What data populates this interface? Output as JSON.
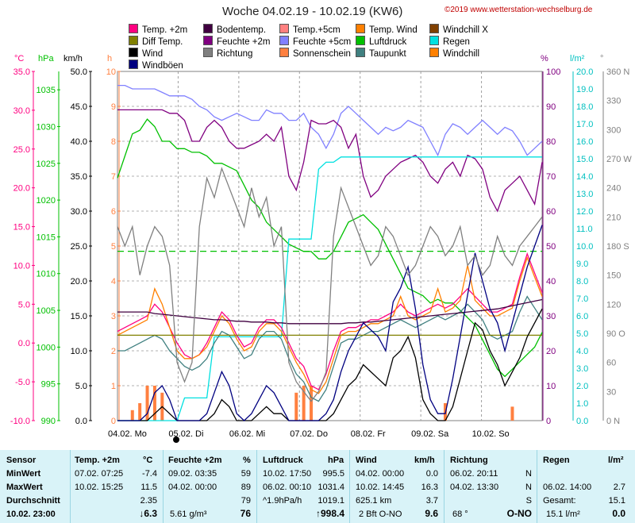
{
  "title": "Woche 04.02.19 - 10.02.19 (KW6)",
  "copyright": "©2019 www.wetterstation-wechselburg.de",
  "legend": [
    {
      "label": "Temp. +2m",
      "color": "#ff0080"
    },
    {
      "label": "Bodentemp.",
      "color": "#400040"
    },
    {
      "label": "Temp.+5cm",
      "color": "#ff8080"
    },
    {
      "label": "Temp. Wind",
      "color": "#ff8000"
    },
    {
      "label": "Windchill X",
      "color": "#804000"
    },
    {
      "label": "Diff Temp.",
      "color": "#808000"
    },
    {
      "label": "Feuchte +2m",
      "color": "#800080"
    },
    {
      "label": "Feuchte +5cm",
      "color": "#8080ff"
    },
    {
      "label": "Luftdruck",
      "color": "#00c000"
    },
    {
      "label": "Regen",
      "color": "#00e0e0"
    },
    {
      "label": "Wind",
      "color": "#000000"
    },
    {
      "label": "Richtung",
      "color": "#808080"
    },
    {
      "label": "Sonnenschein",
      "color": "#ff8040"
    },
    {
      "label": "Taupunkt",
      "color": "#408080"
    },
    {
      "label": "Windchill",
      "color": "#ff8000"
    },
    {
      "label": "Windböen",
      "color": "#000080"
    }
  ],
  "units": {
    "temp": "°C",
    "press": "hPa",
    "wind": "km/h",
    "sun": "h",
    "hum": "%",
    "rain": "l/m²",
    "dir": "°"
  },
  "chart_data": {
    "type": "line",
    "x_labels": [
      "04.02. Mo",
      "05.02. Di",
      "06.02. Mi",
      "07.02. Do",
      "08.02. Fr",
      "09.02. Sa",
      "10.02. So"
    ],
    "axes": {
      "temp": [
        "35.0",
        "30.0",
        "25.0",
        "20.0",
        "15.0",
        "10.0",
        "5.0",
        "0.0",
        "-5.0",
        "-10.0"
      ],
      "press": [
        "1035",
        "1030",
        "1025",
        "1020",
        "1015",
        "1010",
        "1005",
        "1000",
        "995",
        "990"
      ],
      "wind": [
        "50.0",
        "45.0",
        "40.0",
        "35.0",
        "30.0",
        "25.0",
        "20.0",
        "15.0",
        "10.0",
        "5.0",
        "0.0"
      ],
      "sun": [
        "10",
        "9",
        "8",
        "7",
        "6",
        "5",
        "4",
        "3",
        "2",
        "1",
        "0"
      ],
      "hum": [
        "100",
        "90",
        "80",
        "70",
        "60",
        "50",
        "40",
        "30",
        "20",
        "10",
        "0"
      ],
      "rain": [
        "20.0",
        "19.0",
        "18.0",
        "17.0",
        "16.0",
        "15.0",
        "14.0",
        "13.0",
        "12.0",
        "11.0",
        "10.0",
        "9.0",
        "8.0",
        "7.0",
        "6.0",
        "5.0",
        "4.0",
        "3.0",
        "2.0",
        "1.0",
        "0.0"
      ],
      "dir": [
        "360 N",
        "330",
        "300",
        "270 W",
        "240",
        "210",
        "180 S",
        "150",
        "120",
        "90 O",
        "60",
        "30",
        "0 N"
      ]
    },
    "ranges": {
      "temp": [
        -10,
        35
      ],
      "press": [
        990,
        1037.5
      ],
      "wind": [
        0,
        50
      ],
      "sun": [
        0,
        10
      ],
      "hum": [
        0,
        100
      ],
      "rain": [
        0,
        20
      ],
      "dir": [
        0,
        360
      ]
    },
    "series": [
      {
        "name": "Feuchte +5cm",
        "axis": "hum",
        "color": "#8080ff",
        "values": [
          96,
          96,
          95,
          95,
          95,
          95,
          94,
          93,
          93,
          93,
          92,
          90,
          89,
          87,
          86,
          87,
          88,
          87,
          86,
          86,
          89,
          88,
          88,
          86,
          86,
          88,
          84,
          82,
          78,
          82,
          88,
          90,
          88,
          86,
          84,
          82,
          84,
          83,
          84,
          86,
          85,
          84,
          80,
          76,
          82,
          85,
          84,
          82,
          84,
          86,
          84,
          82,
          84,
          83,
          80,
          76,
          78,
          80
        ]
      },
      {
        "name": "Feuchte +2m",
        "axis": "hum",
        "color": "#800080",
        "values": [
          89,
          89,
          89,
          89,
          89,
          89,
          89,
          88,
          88,
          86,
          80,
          80,
          84,
          86,
          84,
          80,
          78,
          78,
          79,
          80,
          82,
          80,
          84,
          70,
          66,
          74,
          86,
          85,
          85,
          86,
          84,
          78,
          82,
          70,
          64,
          66,
          70,
          72,
          74,
          75,
          76,
          74,
          70,
          68,
          72,
          74,
          70,
          76,
          75,
          72,
          64,
          60,
          66,
          68,
          70,
          66,
          62,
          74
        ]
      },
      {
        "name": "Luftdruck",
        "axis": "press",
        "color": "#00c000",
        "values": [
          1023,
          1026,
          1029,
          1029.5,
          1031,
          1030,
          1028,
          1028,
          1027,
          1027,
          1026.5,
          1026.5,
          1026,
          1025,
          1025,
          1024.5,
          1024,
          1022,
          1020,
          1019,
          1017,
          1016,
          1015,
          1014,
          1013.5,
          1013,
          1013,
          1012,
          1012,
          1013,
          1015,
          1017,
          1017.5,
          1018,
          1017,
          1016,
          1014,
          1012,
          1010,
          1008,
          1007.5,
          1007,
          1006,
          1006.5,
          1006,
          1006,
          1005,
          1004,
          1003,
          1001,
          999,
          997,
          996,
          997,
          998,
          999,
          1000,
          1002
        ]
      },
      {
        "name": "Regen",
        "axis": "rain",
        "color": "#00e0e0",
        "values": [
          0,
          0,
          0,
          0,
          0,
          0,
          0,
          0,
          0,
          1.3,
          1.3,
          1.3,
          1.3,
          4.8,
          4.8,
          4.8,
          4.8,
          4.8,
          4.8,
          4.8,
          4.8,
          4.8,
          4.8,
          10.4,
          10.4,
          10.4,
          10.4,
          14.4,
          14.8,
          14.8,
          15.1,
          15.1,
          15.1,
          15.1,
          15.1,
          15.1,
          15.1,
          15.1,
          15.1,
          15.1,
          15.1,
          15.1,
          15.1,
          15.1,
          15.1,
          15.1,
          15.1,
          15.1,
          15.1,
          15.1,
          15.1,
          15.1,
          15.1,
          15.1,
          15.1,
          15.1,
          15.1,
          15.1
        ]
      },
      {
        "name": "Temp. +2m",
        "axis": "temp",
        "color": "#ff0080",
        "values": [
          1.5,
          2,
          2.5,
          3,
          3.5,
          5,
          4,
          2,
          0,
          -1.5,
          -2,
          -1.5,
          0,
          2,
          4,
          3,
          1,
          -0.5,
          0,
          2,
          3,
          3,
          2,
          0,
          -2,
          -3,
          -5.5,
          -6,
          -4,
          -1,
          1.5,
          2,
          2,
          2.5,
          3,
          3,
          3.5,
          4,
          5,
          4,
          3.5,
          4,
          4.5,
          5,
          4.5,
          5,
          6,
          7,
          6,
          5,
          4,
          4,
          4.5,
          5,
          8.5,
          11.5,
          9,
          6.5
        ]
      },
      {
        "name": "Temp. Wind",
        "axis": "temp",
        "color": "#ff8000",
        "values": [
          1,
          1.5,
          2,
          2.5,
          3,
          7,
          5,
          2,
          -1,
          -2,
          -2,
          -1.5,
          -0.5,
          1.5,
          3.5,
          2.5,
          0.5,
          -1,
          -0.5,
          1.5,
          2.5,
          2.5,
          1.5,
          -0.5,
          -2.5,
          -4,
          -6,
          -6.5,
          -5,
          -2,
          1,
          1.5,
          1.5,
          2,
          2.5,
          2.5,
          3,
          3.5,
          6,
          3.5,
          3,
          3.5,
          4,
          7,
          4,
          4.5,
          5.5,
          10,
          5.5,
          4.5,
          3.5,
          3.5,
          4,
          4.5,
          8,
          11,
          8.5,
          6
        ]
      },
      {
        "name": "Taupunkt",
        "axis": "temp",
        "color": "#408080",
        "values": [
          -1,
          -1,
          -0.5,
          0,
          0.5,
          1,
          0.5,
          -1,
          -2,
          -3,
          -3.5,
          -3,
          -2,
          0,
          1.5,
          1,
          -0.5,
          -2,
          -1.5,
          0.5,
          1.5,
          1.5,
          0.5,
          -2,
          -4,
          -5,
          -7,
          -7.5,
          -6,
          -3,
          0,
          0.5,
          0.5,
          1,
          1.5,
          1.5,
          2,
          2.5,
          3,
          2.5,
          2,
          2.5,
          3,
          3.5,
          3,
          3.5,
          4,
          5,
          4,
          3,
          1,
          0.5,
          1,
          1.5,
          4,
          6,
          4.5,
          3
        ]
      },
      {
        "name": "Bodentemp.",
        "axis": "temp",
        "color": "#400040",
        "values": [
          4,
          4,
          4,
          4,
          4,
          3.8,
          3.7,
          3.6,
          3.5,
          3.4,
          3.3,
          3.2,
          3.1,
          3,
          3,
          2.9,
          2.8,
          2.8,
          2.7,
          2.7,
          2.7,
          2.6,
          2.6,
          2.5,
          2.5,
          2.5,
          2.5,
          2.5,
          2.5,
          2.5,
          2.5,
          2.6,
          2.6,
          2.7,
          2.7,
          2.8,
          2.9,
          3,
          3.1,
          3.2,
          3.3,
          3.4,
          3.5,
          3.6,
          3.7,
          3.8,
          3.9,
          4,
          4.1,
          4.2,
          4.3,
          4.4,
          4.6,
          4.8,
          5,
          5.2,
          5.4,
          5.6
        ]
      },
      {
        "name": "Diff Temp.",
        "axis": "temp",
        "color": "#808000",
        "values": [
          1,
          1,
          1,
          1,
          1,
          1,
          1,
          1,
          1,
          1,
          1,
          1,
          1,
          1,
          1,
          1,
          1,
          1,
          1,
          1,
          1,
          1,
          1,
          1,
          1,
          1,
          1,
          1,
          1,
          1,
          1,
          1,
          1,
          1,
          1,
          1,
          1,
          1,
          1,
          1,
          1,
          1,
          1,
          1,
          1,
          1,
          1,
          1,
          1,
          1,
          1,
          1,
          1,
          1,
          1,
          1,
          1,
          1
        ]
      },
      {
        "name": "Wind",
        "axis": "wind",
        "color": "#000000",
        "values": [
          0,
          0,
          0,
          0,
          0,
          1,
          2,
          1,
          0,
          0,
          0,
          0,
          0,
          1,
          3,
          2,
          0,
          0,
          0,
          1,
          2,
          1,
          1,
          0,
          0,
          0,
          0,
          0,
          0,
          1,
          3,
          5,
          6,
          8,
          7,
          6,
          5,
          9,
          10,
          12,
          9,
          3,
          1,
          0,
          0,
          2,
          6,
          10,
          14,
          13,
          10,
          8,
          5,
          7,
          9,
          12,
          14,
          16
        ]
      },
      {
        "name": "Windböen",
        "axis": "wind",
        "color": "#000080",
        "values": [
          0,
          0,
          0,
          0,
          1,
          4,
          5,
          3,
          0,
          0,
          0,
          0,
          1,
          4,
          7,
          5,
          1,
          0,
          1,
          3,
          5,
          4,
          2,
          0,
          0,
          0,
          0,
          0,
          1,
          3,
          7,
          10,
          12,
          14,
          13,
          12,
          10,
          17,
          19,
          22,
          16,
          8,
          3,
          1,
          1,
          6,
          12,
          18,
          24,
          20,
          16,
          14,
          10,
          14,
          18,
          22,
          25,
          28
        ]
      },
      {
        "name": "Richtung",
        "axis": "dir",
        "color": "#808080",
        "values": [
          200,
          180,
          200,
          150,
          180,
          200,
          190,
          160,
          60,
          40,
          60,
          200,
          250,
          230,
          260,
          240,
          220,
          200,
          240,
          210,
          230,
          180,
          200,
          60,
          40,
          30,
          20,
          30,
          50,
          190,
          240,
          220,
          200,
          180,
          160,
          170,
          200,
          190,
          170,
          150,
          160,
          180,
          200,
          190,
          170,
          180,
          200,
          160,
          170,
          150,
          160,
          190,
          170,
          160,
          180,
          190,
          200,
          210
        ]
      }
    ],
    "sunshine": {
      "axis": "sun",
      "color": "#ff8040",
      "values": [
        0,
        0,
        0.3,
        0.5,
        1,
        1,
        0.8,
        0,
        0,
        0,
        0,
        0,
        0,
        0,
        0,
        0,
        0,
        0,
        0,
        0,
        0,
        0,
        0,
        0,
        0.8,
        1,
        1,
        0,
        0,
        0,
        0,
        0,
        0,
        0,
        0,
        0,
        0,
        0,
        0,
        0,
        0,
        0,
        0,
        0,
        0.5,
        0,
        0,
        0,
        0,
        0,
        0,
        0,
        0,
        0.4,
        0,
        0,
        0,
        0
      ]
    },
    "ref_line": {
      "axis": "hum",
      "value": 48.5,
      "color": "#00c000"
    }
  },
  "stats": {
    "headers": {
      "sensor": "Sensor",
      "temp": "Temp. +2m",
      "temp_unit": "°C",
      "hum": "Feuchte +2m",
      "hum_unit": "%",
      "press": "Luftdruck",
      "press_unit": "hPa",
      "wind": "Wind",
      "wind_unit": "km/h",
      "dir": "Richtung",
      "rain": "Regen",
      "rain_unit": "l/m²"
    },
    "labels": {
      "min": "MinWert",
      "max": "MaxWert",
      "avg": "Durchschnitt",
      "cur": "10.02. 23:00"
    },
    "temp": {
      "min_t": "07.02.  07:25",
      "min_v": "-7.4",
      "max_t": "10.02.  15:25",
      "max_v": "11.5",
      "avg": "2.35",
      "cur": "↓6.3"
    },
    "hum": {
      "min_t": "09.02.  03:35",
      "min_v": "59",
      "max_t": "04.02.  00:00",
      "max_v": "89",
      "avg": "79",
      "abs": "5.61 g/m³",
      "cur": "76"
    },
    "press": {
      "min_t": "10.02.  17:50",
      "min_v": "995.5",
      "max_t": "06.02.  00:10",
      "max_v": "1031.4",
      "trend": "^1.9hPa/h",
      "avg": "1019.1",
      "cur": "↑998.4"
    },
    "wind": {
      "min_t": "04.02.  00:00",
      "min_v": "0.0",
      "max_t": "10.02.  14:45",
      "max_v": "16.3",
      "dist": "625.1 km",
      "avg": "3.7",
      "bft": "2 Bft O-NO",
      "cur": "9.6"
    },
    "dir": {
      "min_t": "06.02.  20:11",
      "min_v": "N",
      "max_t": "04.02.  13:30",
      "max_v": "N",
      "avg": "S",
      "deg": "68 °",
      "cur": "O-NO"
    },
    "rain": {
      "max_t": "06.02.  14:00",
      "max_v": "2.7",
      "total_l": "Gesamt:",
      "total_v": "15.1",
      "cur_l": "15.1 l/m²",
      "cur_v": "0.0"
    }
  }
}
